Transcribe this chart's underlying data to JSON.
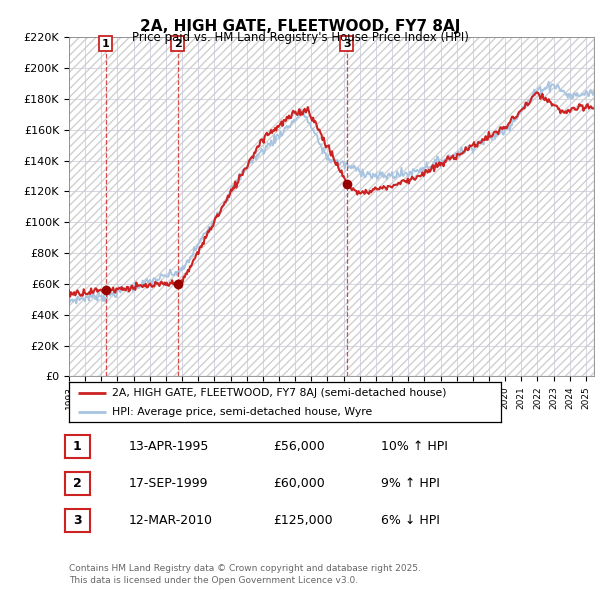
{
  "title": "2A, HIGH GATE, FLEETWOOD, FY7 8AJ",
  "subtitle": "Price paid vs. HM Land Registry's House Price Index (HPI)",
  "ylim": [
    0,
    220000
  ],
  "yticks": [
    0,
    20000,
    40000,
    60000,
    80000,
    100000,
    120000,
    140000,
    160000,
    180000,
    200000,
    220000
  ],
  "ytick_labels": [
    "£0",
    "£20K",
    "£40K",
    "£60K",
    "£80K",
    "£100K",
    "£120K",
    "£140K",
    "£160K",
    "£180K",
    "£200K",
    "£220K"
  ],
  "hpi_color": "#a8c4e0",
  "price_color": "#cc2222",
  "marker_color": "#990000",
  "vline_color": "#cc2222",
  "purchases": [
    {
      "label": "1",
      "date_num": 1995.28,
      "price": 56000,
      "date_str": "13-APR-1995"
    },
    {
      "label": "2",
      "date_num": 1999.72,
      "price": 60000,
      "date_str": "17-SEP-1999"
    },
    {
      "label": "3",
      "date_num": 2010.19,
      "price": 125000,
      "date_str": "12-MAR-2010"
    }
  ],
  "legend_entry1": "2A, HIGH GATE, FLEETWOOD, FY7 8AJ (semi-detached house)",
  "legend_entry2": "HPI: Average price, semi-detached house, Wyre",
  "footnote": "Contains HM Land Registry data © Crown copyright and database right 2025.\nThis data is licensed under the Open Government Licence v3.0.",
  "table_rows": [
    [
      "1",
      "13-APR-1995",
      "£56,000",
      "10% ↑ HPI"
    ],
    [
      "2",
      "17-SEP-1999",
      "£60,000",
      "9% ↑ HPI"
    ],
    [
      "3",
      "12-MAR-2010",
      "£125,000",
      "6% ↓ HPI"
    ]
  ]
}
